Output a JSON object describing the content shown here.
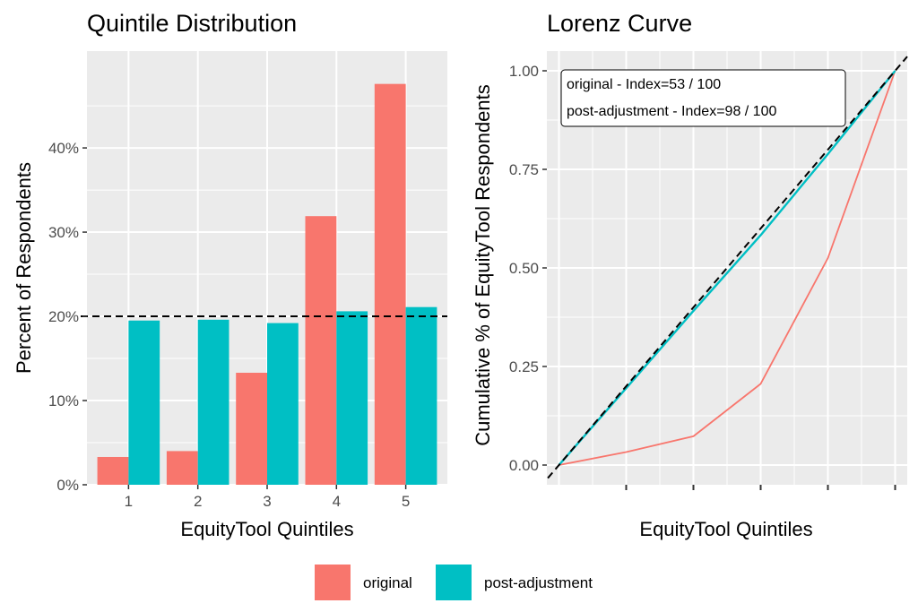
{
  "colors": {
    "original": "#F8766D",
    "post_adjustment": "#00BFC4",
    "panel_bg": "#EBEBEB",
    "grid": "#FFFFFF",
    "reference": "#000000"
  },
  "chart_data": [
    {
      "type": "bar",
      "title": "Quintile Distribution",
      "xlabel": "EquityTool Quintiles",
      "ylabel": "Percent of Respondents",
      "categories": [
        "1",
        "2",
        "3",
        "4",
        "5"
      ],
      "series": [
        {
          "name": "original",
          "values": [
            3.3,
            4.0,
            13.3,
            31.9,
            47.6
          ]
        },
        {
          "name": "post-adjustment",
          "values": [
            19.5,
            19.6,
            19.2,
            20.6,
            21.1
          ]
        }
      ],
      "reference_line": 20,
      "ylim": [
        0,
        51.5
      ],
      "yticks": [
        0,
        10,
        20,
        30,
        40
      ],
      "ytick_labels": [
        "0%",
        "10%",
        "20%",
        "30%",
        "40%"
      ],
      "grid": true
    },
    {
      "type": "line",
      "title": "Lorenz Curve",
      "xlabel": "EquityTool Quintiles",
      "ylabel": "Cumulative % of EquityTool Respondents",
      "x": [
        0,
        1,
        2,
        3,
        4,
        5
      ],
      "series": [
        {
          "name": "original",
          "values": [
            0,
            0.033,
            0.073,
            0.206,
            0.525,
            1.0
          ]
        },
        {
          "name": "post-adjustment",
          "values": [
            0,
            0.195,
            0.391,
            0.583,
            0.789,
            1.0
          ]
        }
      ],
      "reference_line": "equality diagonal",
      "xlim": [
        -0.18,
        5.18
      ],
      "ylim": [
        -0.05,
        1.05
      ],
      "yticks": [
        0,
        0.25,
        0.5,
        0.75,
        1.0
      ],
      "ytick_labels": [
        "0.00",
        "0.25",
        "0.50",
        "0.75",
        "1.00"
      ],
      "grid": true,
      "annotations": [
        "original - Index=53 / 100",
        "post-adjustment - Index=98 / 100"
      ]
    }
  ],
  "legend": {
    "placement": "bottom",
    "items": [
      {
        "label": "original",
        "color_key": "original"
      },
      {
        "label": "post-adjustment",
        "color_key": "post_adjustment"
      }
    ]
  }
}
